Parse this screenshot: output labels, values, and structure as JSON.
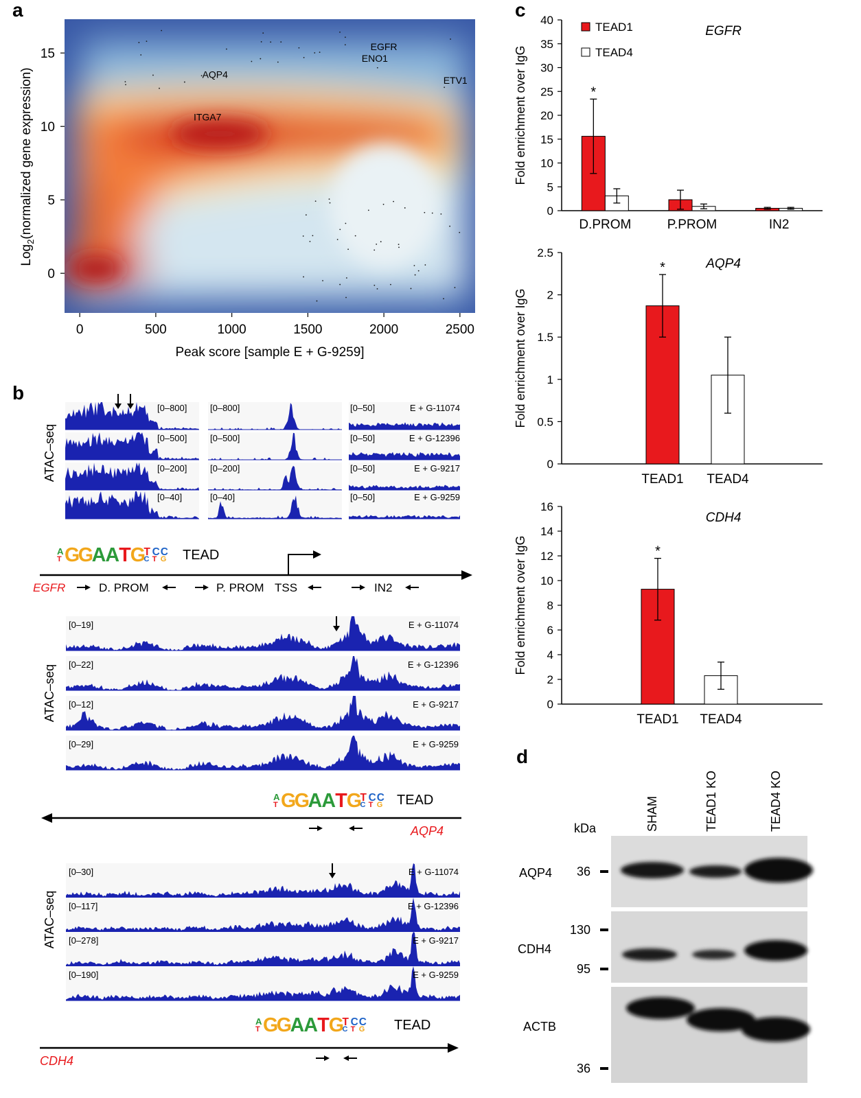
{
  "panels": {
    "a": "a",
    "b": "b",
    "c": "c",
    "d": "d"
  },
  "panel_a": {
    "xlabel": "Peak score [sample  E + G-9259]",
    "ylabel_main": "Log",
    "ylabel_sub": "2",
    "ylabel_rest": "(normalized gene expression)",
    "gene_labels": [
      {
        "name": "EGFR",
        "x": 2000,
        "y": 15.2
      },
      {
        "name": "ENO1",
        "x": 1940,
        "y": 14.4
      },
      {
        "name": "AQP4",
        "x": 890,
        "y": 13.3
      },
      {
        "name": "ETV1",
        "x": 2470,
        "y": 12.9
      },
      {
        "name": "ITGA7",
        "x": 840,
        "y": 10.4
      }
    ]
  },
  "chart_data": [
    {
      "type": "heatmap",
      "title": "",
      "xlabel": "Peak score [sample  E + G-9259]",
      "ylabel": "Log2(normalized gene expression)",
      "xlim": [
        -100,
        2600
      ],
      "ylim": [
        -2.7,
        17.3
      ],
      "x_ticks": [
        0,
        500,
        1000,
        1500,
        2000,
        2500
      ],
      "y_ticks": [
        0,
        5,
        10,
        15
      ],
      "annotations": [
        "EGFR",
        "ENO1",
        "AQP4",
        "ETV1",
        "ITGA7"
      ]
    },
    {
      "type": "bar",
      "title": "EGFR",
      "categories": [
        "D.PROM",
        "P.PROM",
        "IN2"
      ],
      "series": [
        {
          "name": "TEAD1",
          "values": [
            15.6,
            2.3,
            0.5
          ],
          "errors": [
            7.8,
            2.0,
            0.2
          ],
          "color": "#e8191d"
        },
        {
          "name": "TEAD4",
          "values": [
            3.1,
            0.9,
            0.5
          ],
          "errors": [
            1.5,
            0.5,
            0.2
          ],
          "color": "#ffffff"
        }
      ],
      "ylabel": "Fold enrichment over IgG",
      "ylim": [
        0,
        40
      ],
      "yticks": [
        0,
        5,
        10,
        15,
        20,
        25,
        30,
        35,
        40
      ],
      "significance": [
        "*",
        "",
        ""
      ]
    },
    {
      "type": "bar",
      "title": "AQP4",
      "categories": [
        "TEAD1",
        "TEAD4"
      ],
      "values": [
        1.87,
        1.05
      ],
      "errors": [
        0.37,
        0.45
      ],
      "colors": [
        "#e8191d",
        "#ffffff"
      ],
      "ylabel": "Fold enrichment over IgG",
      "ylim": [
        0,
        2.5
      ],
      "yticks": [
        "0",
        "0.5",
        "1",
        "1.5",
        "2",
        "2.5"
      ],
      "significance": [
        "*",
        ""
      ]
    },
    {
      "type": "bar",
      "title": "CDH4",
      "categories": [
        "TEAD1",
        "TEAD4"
      ],
      "values": [
        9.3,
        2.3
      ],
      "errors": [
        2.5,
        1.1
      ],
      "colors": [
        "#e8191d",
        "#ffffff"
      ],
      "ylabel": "Fold enrichment over IgG",
      "ylim": [
        0,
        16
      ],
      "yticks": [
        0,
        2,
        4,
        6,
        8,
        10,
        12,
        14,
        16
      ],
      "significance": [
        "*",
        ""
      ]
    }
  ],
  "panel_b": {
    "track_title": "ATAC–seq",
    "samples": [
      "E + G-11074",
      "E + G-12396",
      "E + G-9217",
      "E + G-9259"
    ],
    "egfr_ranges": [
      [
        "[0–800]",
        "[0–800]",
        "[0–50]"
      ],
      [
        "[0–500]",
        "[0–500]",
        "[0–50]"
      ],
      [
        "[0–200]",
        "[0–200]",
        "[0–50]"
      ],
      [
        "[0–40]",
        "[0–40]",
        "[0–50]"
      ]
    ],
    "aqp4_ranges": [
      "[0–19]",
      "[0–22]",
      "[0–12]",
      "[0–29]"
    ],
    "cdh4_ranges": [
      "[0–30]",
      "[0–117]",
      "[0–278]",
      "[0–190]"
    ],
    "motif_label": "TEAD",
    "motif_letters": "GGAATGTCC",
    "egfr_gene": "EGFR",
    "egfr_regions": {
      "dprom": "D. PROM",
      "pprom": "P. PROM",
      "tss": "TSS",
      "in2": "IN2"
    },
    "aqp4_gene": "AQP4",
    "cdh4_gene": "CDH4",
    "colors": {
      "track": "#1a23b0",
      "gene_label": "#e8191d"
    }
  },
  "panel_c": {
    "legend": [
      "TEAD1",
      "TEAD4"
    ]
  },
  "panel_d": {
    "lanes": [
      "SHAM",
      "TEAD1 KO",
      "TEAD4 KO"
    ],
    "kda_label": "kDa",
    "blots": [
      {
        "protein": "AQP4",
        "markers": [
          "36"
        ]
      },
      {
        "protein": "CDH4",
        "markers": [
          "130",
          "95"
        ]
      },
      {
        "protein": "ACTB",
        "markers": [
          "36"
        ]
      }
    ]
  }
}
